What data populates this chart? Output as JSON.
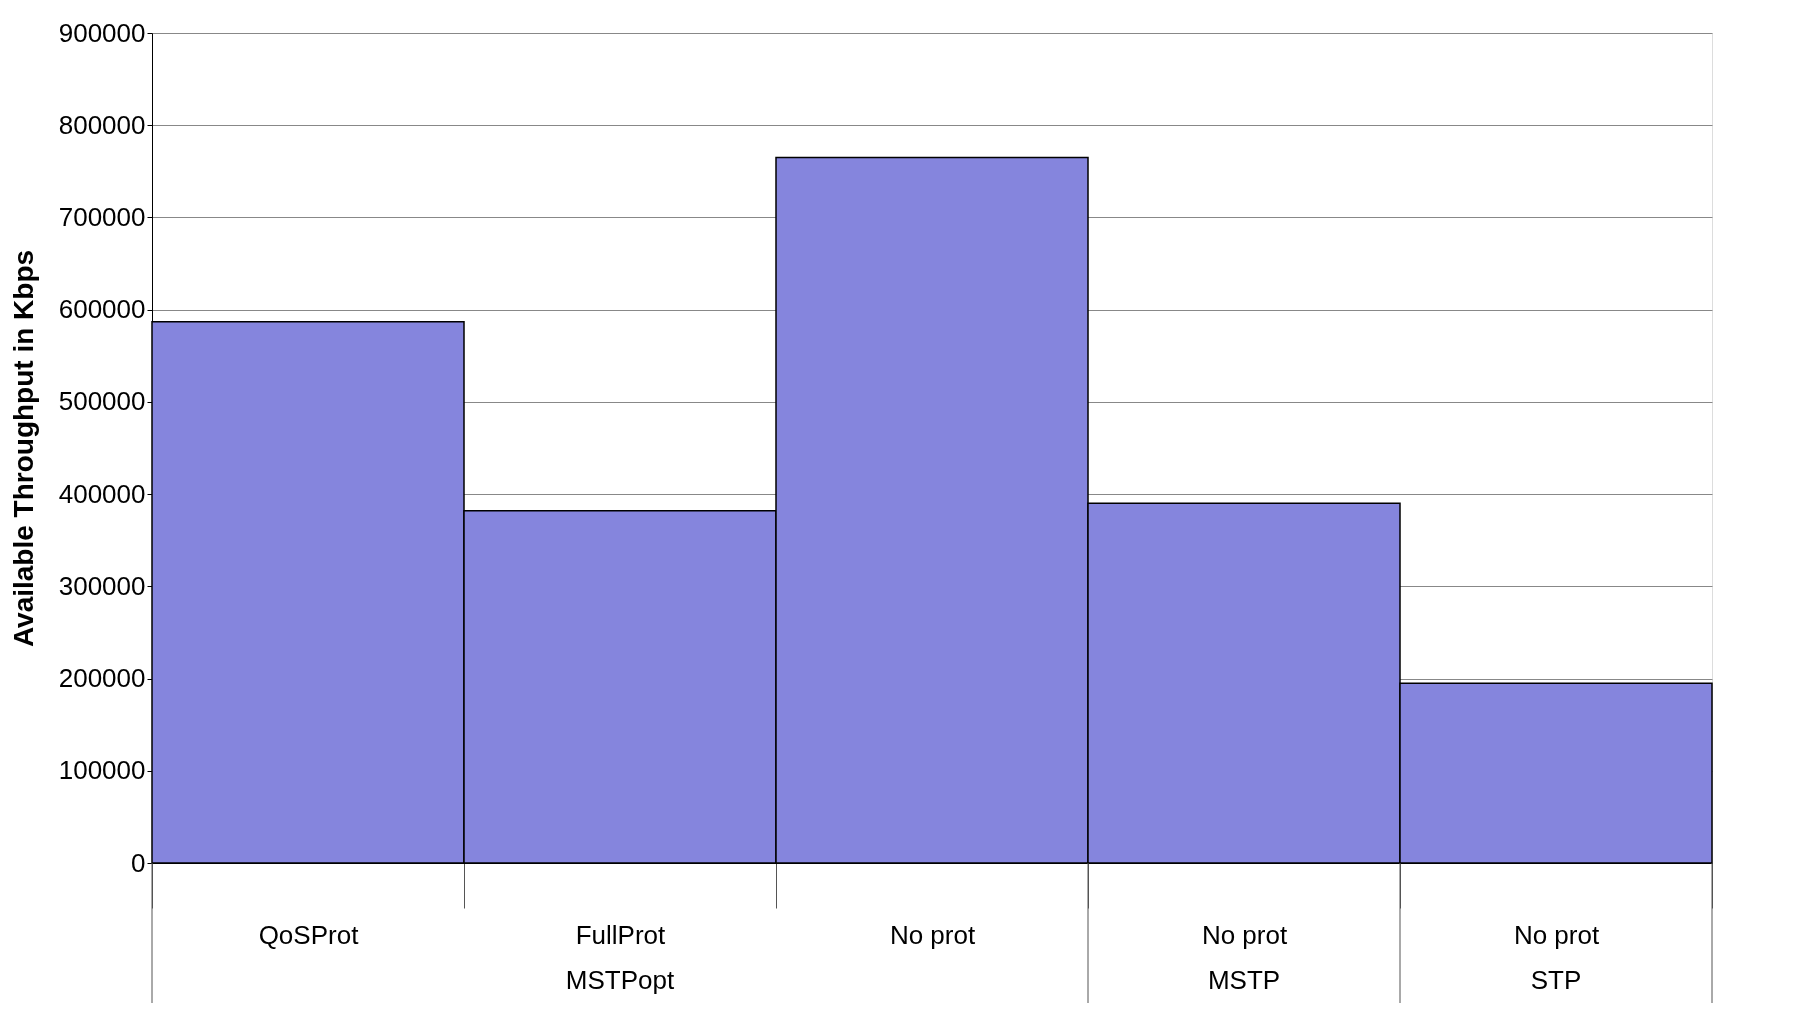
{
  "chart_data": {
    "type": "bar",
    "ylabel": "Available Throughput in Kbps",
    "categories": [
      "QoSProt",
      "FullProt",
      "No prot",
      "No prot",
      "No prot"
    ],
    "values": [
      587000,
      382000,
      765000,
      390000,
      195000
    ],
    "color": "#8585dd",
    "ylim": [
      0,
      900000
    ],
    "yticks": [
      0,
      100000,
      200000,
      300000,
      400000,
      500000,
      600000,
      700000,
      800000,
      900000
    ],
    "grid": "y",
    "annotations": [
      "MSTPopt",
      "MSTP",
      "STP"
    ]
  }
}
